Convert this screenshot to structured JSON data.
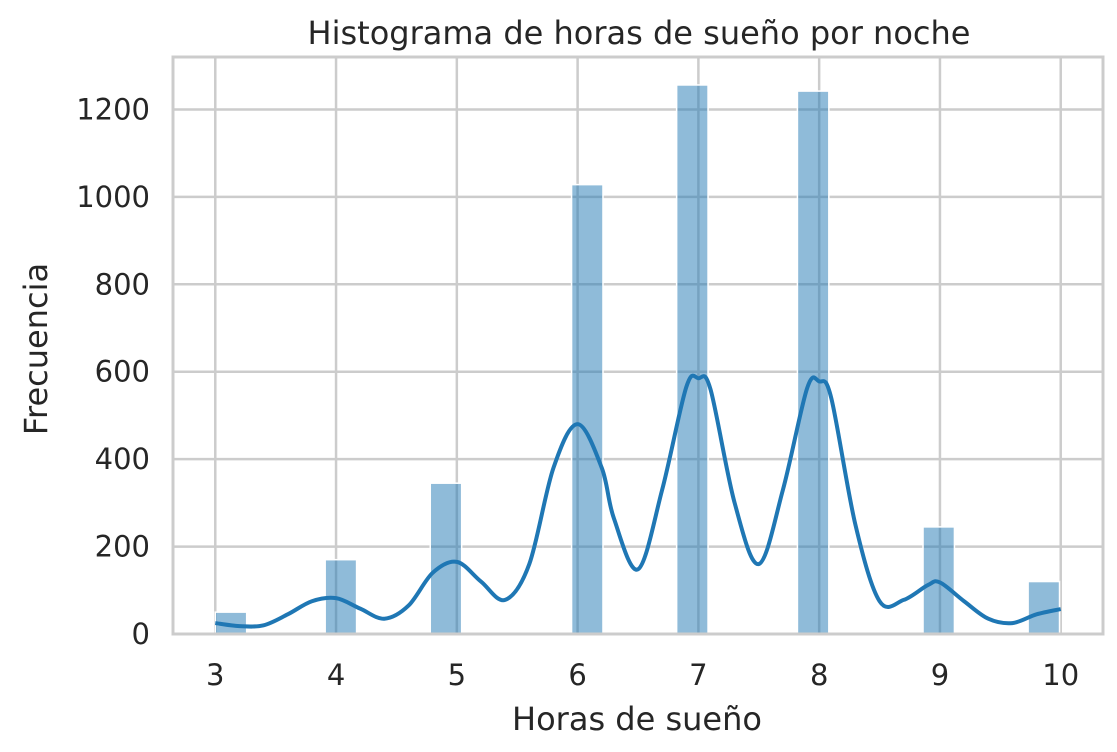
{
  "chart_data": {
    "type": "bar",
    "title": "Histograma de horas de sueño por noche",
    "xlabel": "Horas de sueño",
    "ylabel": "Frecuencia",
    "xlim": [
      2.65,
      10.35
    ],
    "ylim": [
      0,
      1320
    ],
    "xticks": [
      "3",
      "4",
      "5",
      "6",
      "7",
      "8",
      "9",
      "10"
    ],
    "yticks": [
      "0",
      "200",
      "400",
      "600",
      "800",
      "1000",
      "1200"
    ],
    "grid": true,
    "bars": [
      {
        "x_start": 3.0,
        "x_end": 3.26,
        "value": 50
      },
      {
        "x_start": 3.91,
        "x_end": 4.17,
        "value": 170
      },
      {
        "x_start": 4.78,
        "x_end": 5.04,
        "value": 345
      },
      {
        "x_start": 5.95,
        "x_end": 6.21,
        "value": 1028
      },
      {
        "x_start": 6.82,
        "x_end": 7.08,
        "value": 1256
      },
      {
        "x_start": 7.82,
        "x_end": 8.08,
        "value": 1242
      },
      {
        "x_start": 8.86,
        "x_end": 9.12,
        "value": 245
      },
      {
        "x_start": 9.73,
        "x_end": 9.99,
        "value": 120
      }
    ],
    "kde_curve": {
      "x": [
        3.0,
        3.2,
        3.4,
        3.6,
        3.8,
        4.0,
        4.2,
        4.4,
        4.6,
        4.8,
        5.0,
        5.2,
        5.4,
        5.6,
        5.8,
        6.0,
        6.2,
        6.3,
        6.5,
        6.7,
        6.9,
        7.0,
        7.1,
        7.3,
        7.5,
        7.7,
        7.9,
        8.0,
        8.1,
        8.3,
        8.5,
        8.7,
        8.9,
        9.0,
        9.2,
        9.4,
        9.6,
        9.8,
        10.0
      ],
      "y": [
        25,
        18,
        20,
        45,
        75,
        82,
        58,
        35,
        65,
        140,
        165,
        120,
        78,
        160,
        380,
        480,
        380,
        265,
        148,
        330,
        565,
        585,
        560,
        300,
        160,
        330,
        562,
        578,
        540,
        250,
        75,
        78,
        112,
        118,
        75,
        35,
        25,
        45,
        57
      ]
    },
    "colors": {
      "bar_fill": "#1f77b4",
      "bar_opacity": "0.5",
      "kde_line": "#1f77b4",
      "grid": "#cccccc",
      "text": "#262626"
    }
  }
}
